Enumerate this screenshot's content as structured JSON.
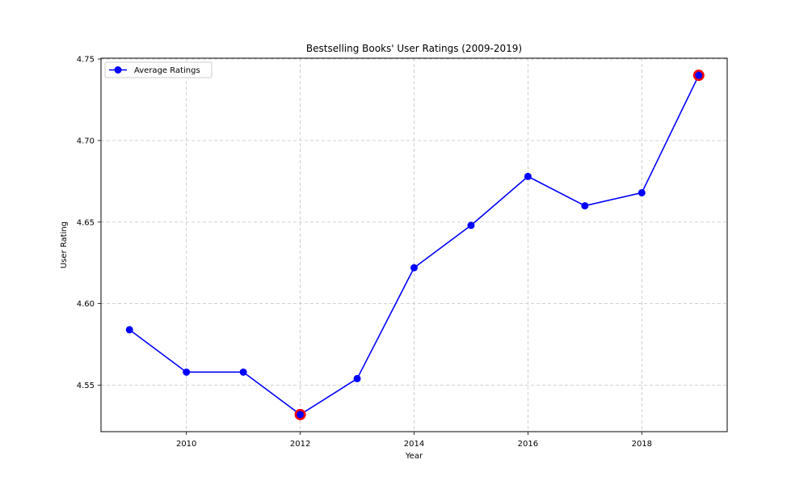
{
  "chart_data": {
    "type": "line",
    "title": "Bestselling Books' User Ratings (2009-2019)",
    "xlabel": "Year",
    "ylabel": "User Rating",
    "x": [
      2009,
      2010,
      2011,
      2012,
      2013,
      2014,
      2015,
      2016,
      2017,
      2018,
      2019
    ],
    "series": [
      {
        "name": "Average Ratings",
        "color": "#0000ff",
        "marker": "circle",
        "values": [
          4.584,
          4.558,
          4.558,
          4.532,
          4.554,
          4.622,
          4.648,
          4.678,
          4.66,
          4.668,
          4.74
        ]
      }
    ],
    "highlighted_points": {
      "color": "#ff0000",
      "x": [
        2012,
        2019
      ],
      "values": [
        4.532,
        4.74
      ]
    },
    "xlim": [
      2008.5,
      2019.5
    ],
    "ylim": [
      4.5215,
      4.7505
    ],
    "xticks": [
      2010,
      2012,
      2014,
      2016,
      2018
    ],
    "xtick_labels": [
      "2010",
      "2012",
      "2014",
      "2016",
      "2018"
    ],
    "yticks": [
      4.55,
      4.6,
      4.65,
      4.7,
      4.75
    ],
    "ytick_labels": [
      "4.55",
      "4.60",
      "4.65",
      "4.70",
      "4.75"
    ],
    "grid": true,
    "grid_style": "dashed",
    "legend_position": "upper-left"
  }
}
